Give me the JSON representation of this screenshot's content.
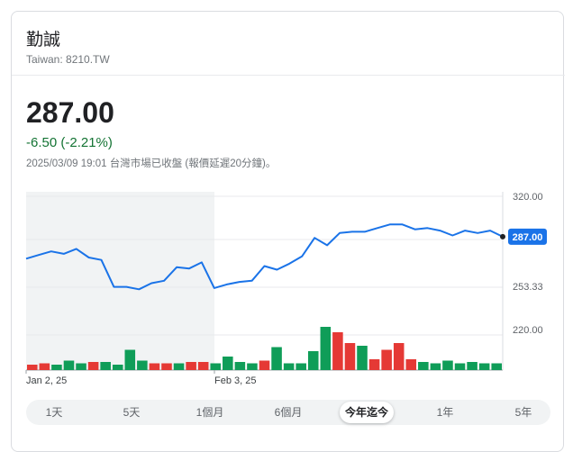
{
  "stock": {
    "name": "勤誠",
    "ticker": "Taiwan: 8210.TW",
    "price": "287.00",
    "change": "-6.50 (-2.21%)",
    "timestamp": "2025/03/09 19:01 台灣市場已收盤 (報價延遲20分鐘)。"
  },
  "colors": {
    "line": "#1a73e8",
    "up": "#e53935",
    "down": "#0f9d58",
    "change_text": "#137333",
    "shade": "#f1f3f4"
  },
  "range_tabs": [
    {
      "label": "1天",
      "active": false
    },
    {
      "label": "5天",
      "active": false
    },
    {
      "label": "1個月",
      "active": false
    },
    {
      "label": "6個月",
      "active": false
    },
    {
      "label": "今年迄今",
      "active": true
    },
    {
      "label": "1年",
      "active": false
    },
    {
      "label": "5年",
      "active": false
    }
  ],
  "chart_data": {
    "type": "line",
    "title": "",
    "y_ticks": [
      "320.00",
      "253.33",
      "220.00"
    ],
    "ylim": [
      178,
      320
    ],
    "x_tick_labels": [
      "Jan 2, 25",
      "Feb 3, 25"
    ],
    "current_label": "287.00",
    "grid": true,
    "series": [
      {
        "values": [
          269,
          272,
          275,
          273,
          277,
          270,
          268,
          246,
          246,
          244,
          249,
          251,
          262,
          261,
          266,
          245,
          248,
          250,
          251,
          263,
          260,
          265,
          271,
          286,
          280,
          290,
          291,
          291,
          294,
          297,
          297,
          293,
          294,
          292,
          288,
          292,
          290,
          292,
          287
        ]
      }
    ],
    "volume": {
      "up": [
        true,
        true,
        false,
        false,
        false,
        true,
        false,
        false,
        false,
        false,
        true,
        true,
        false,
        true,
        true,
        false,
        false,
        false,
        false,
        true,
        false,
        false,
        false,
        false,
        false,
        true,
        true,
        false,
        true,
        true,
        true,
        true,
        false,
        false,
        false,
        false,
        false,
        false,
        false
      ],
      "values": [
        4,
        5,
        4,
        7,
        5,
        6,
        6,
        4,
        15,
        7,
        5,
        5,
        5,
        6,
        6,
        5,
        10,
        6,
        5,
        7,
        17,
        5,
        5,
        14,
        32,
        28,
        20,
        18,
        8,
        15,
        20,
        8,
        6,
        5,
        7,
        5,
        6,
        5,
        5
      ]
    }
  }
}
